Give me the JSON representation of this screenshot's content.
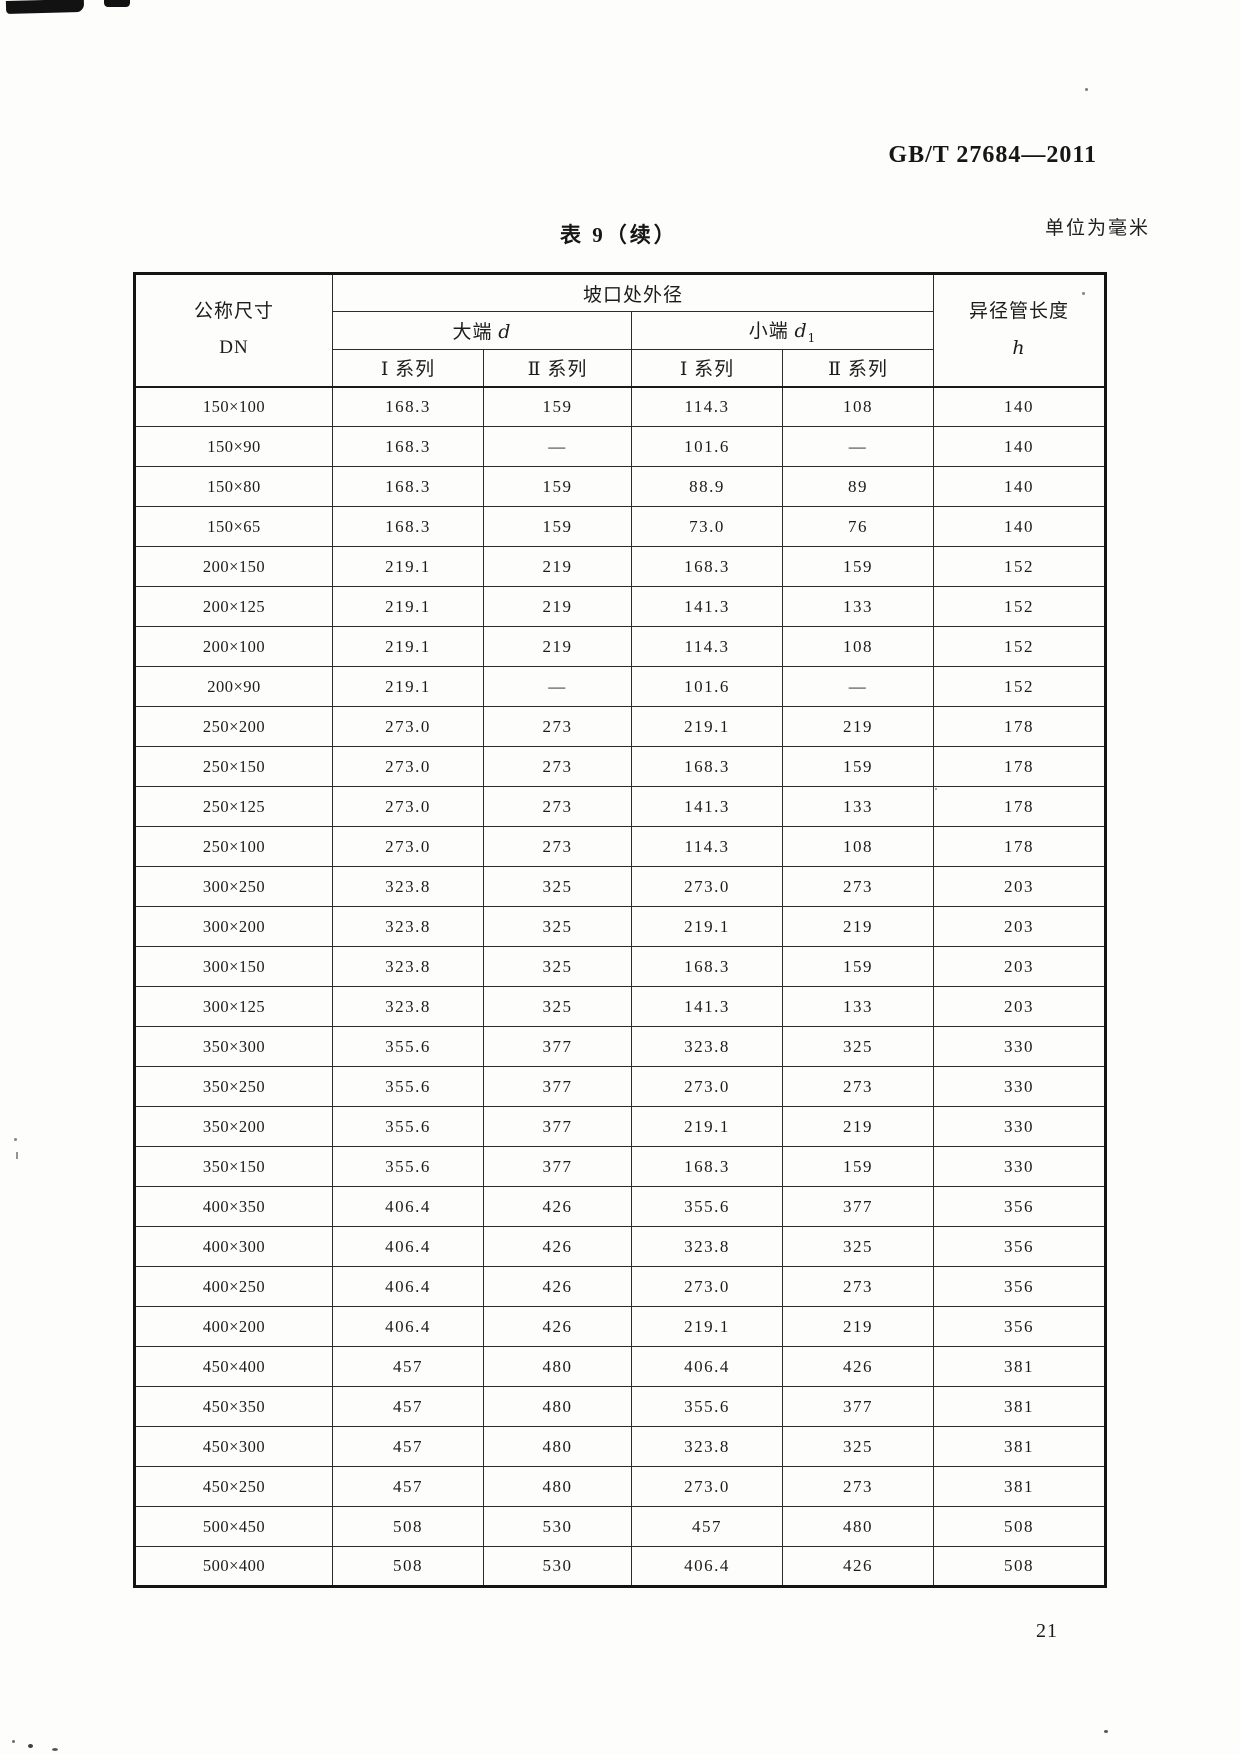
{
  "page": {
    "doc_code": "GB/T 27684—2011",
    "table_title": "表 9（续）",
    "unit_note": "单位为毫米",
    "page_number": "21"
  },
  "table": {
    "header": {
      "dn_line1": "公称尺寸",
      "dn_line2": "DN",
      "outer_diameter": "坡口处外径",
      "big_end": "大端",
      "big_end_var": "d",
      "small_end": "小端",
      "small_end_var": "d",
      "small_end_sub": "1",
      "series_i": "Ⅰ 系列",
      "series_ii": "Ⅱ 系列",
      "length_line1": "异径管长度",
      "length_var": "h"
    },
    "rows": [
      [
        "150×100",
        "168.3",
        "159",
        "114.3",
        "108",
        "140"
      ],
      [
        "150×90",
        "168.3",
        "—",
        "101.6",
        "—",
        "140"
      ],
      [
        "150×80",
        "168.3",
        "159",
        "88.9",
        "89",
        "140"
      ],
      [
        "150×65",
        "168.3",
        "159",
        "73.0",
        "76",
        "140"
      ],
      [
        "200×150",
        "219.1",
        "219",
        "168.3",
        "159",
        "152"
      ],
      [
        "200×125",
        "219.1",
        "219",
        "141.3",
        "133",
        "152"
      ],
      [
        "200×100",
        "219.1",
        "219",
        "114.3",
        "108",
        "152"
      ],
      [
        "200×90",
        "219.1",
        "—",
        "101.6",
        "—",
        "152"
      ],
      [
        "250×200",
        "273.0",
        "273",
        "219.1",
        "219",
        "178"
      ],
      [
        "250×150",
        "273.0",
        "273",
        "168.3",
        "159",
        "178"
      ],
      [
        "250×125",
        "273.0",
        "273",
        "141.3",
        "133",
        "178"
      ],
      [
        "250×100",
        "273.0",
        "273",
        "114.3",
        "108",
        "178"
      ],
      [
        "300×250",
        "323.8",
        "325",
        "273.0",
        "273",
        "203"
      ],
      [
        "300×200",
        "323.8",
        "325",
        "219.1",
        "219",
        "203"
      ],
      [
        "300×150",
        "323.8",
        "325",
        "168.3",
        "159",
        "203"
      ],
      [
        "300×125",
        "323.8",
        "325",
        "141.3",
        "133",
        "203"
      ],
      [
        "350×300",
        "355.6",
        "377",
        "323.8",
        "325",
        "330"
      ],
      [
        "350×250",
        "355.6",
        "377",
        "273.0",
        "273",
        "330"
      ],
      [
        "350×200",
        "355.6",
        "377",
        "219.1",
        "219",
        "330"
      ],
      [
        "350×150",
        "355.6",
        "377",
        "168.3",
        "159",
        "330"
      ],
      [
        "400×350",
        "406.4",
        "426",
        "355.6",
        "377",
        "356"
      ],
      [
        "400×300",
        "406.4",
        "426",
        "323.8",
        "325",
        "356"
      ],
      [
        "400×250",
        "406.4",
        "426",
        "273.0",
        "273",
        "356"
      ],
      [
        "400×200",
        "406.4",
        "426",
        "219.1",
        "219",
        "356"
      ],
      [
        "450×400",
        "457",
        "480",
        "406.4",
        "426",
        "381"
      ],
      [
        "450×350",
        "457",
        "480",
        "355.6",
        "377",
        "381"
      ],
      [
        "450×300",
        "457",
        "480",
        "323.8",
        "325",
        "381"
      ],
      [
        "450×250",
        "457",
        "480",
        "273.0",
        "273",
        "381"
      ],
      [
        "500×450",
        "508",
        "530",
        "457",
        "480",
        "508"
      ],
      [
        "500×400",
        "508",
        "530",
        "406.4",
        "426",
        "508"
      ]
    ]
  }
}
